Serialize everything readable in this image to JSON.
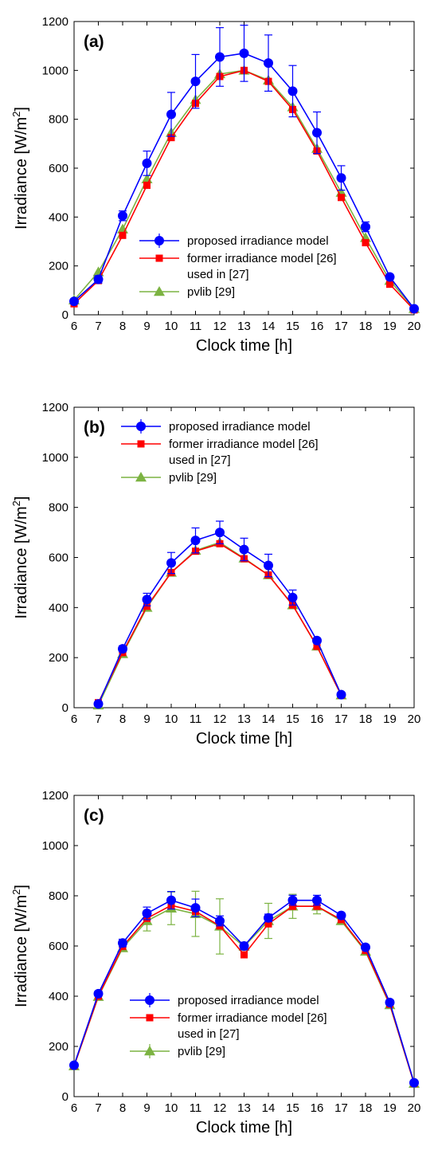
{
  "chart_data": [
    {
      "type": "line",
      "panel_label": "(a)",
      "xlabel": "Clock time [h]",
      "ylabel_main": "Irradiance [W/m",
      "ylabel_sup": "2",
      "ylabel_tail": "]",
      "xlim": [
        6,
        20
      ],
      "ylim": [
        0,
        1200
      ],
      "xticks": [
        6,
        7,
        8,
        9,
        10,
        11,
        12,
        13,
        14,
        15,
        16,
        17,
        18,
        19,
        20
      ],
      "yticks": [
        0,
        200,
        400,
        600,
        800,
        1000,
        1200
      ],
      "grid": false,
      "legend_placement": "bottom-center",
      "legend": [
        "proposed irradiance model",
        "former irradiance model [26]",
        "used in [27]",
        "pvlib [29]"
      ],
      "series": [
        {
          "name": "proposed irradiance model",
          "color": "#0000ff",
          "marker": "circle",
          "x": [
            6,
            7,
            8,
            9,
            10,
            11,
            12,
            13,
            14,
            15,
            16,
            17,
            18,
            19,
            20
          ],
          "y": [
            55,
            145,
            405,
            620,
            820,
            955,
            1055,
            1070,
            1030,
            915,
            745,
            560,
            360,
            155,
            25
          ],
          "err": [
            10,
            15,
            20,
            50,
            90,
            110,
            120,
            115,
            115,
            105,
            85,
            50,
            20,
            10,
            5
          ]
        },
        {
          "name": "former irradiance model [26] used in [27]",
          "color": "#ff0000",
          "marker": "square",
          "x": [
            6,
            7,
            8,
            9,
            10,
            11,
            12,
            13,
            14,
            15,
            16,
            17,
            18,
            19,
            20
          ],
          "y": [
            45,
            140,
            325,
            530,
            725,
            865,
            975,
            1000,
            955,
            840,
            670,
            480,
            295,
            125,
            20
          ]
        },
        {
          "name": "pvlib [29]",
          "color": "#7cb342",
          "marker": "triangle",
          "x": [
            6,
            7,
            8,
            9,
            10,
            11,
            12,
            13,
            14,
            15,
            16,
            17,
            18,
            19,
            20
          ],
          "y": [
            60,
            175,
            350,
            555,
            745,
            880,
            985,
            1000,
            960,
            850,
            680,
            500,
            315,
            140,
            25
          ]
        }
      ]
    },
    {
      "type": "line",
      "panel_label": "(b)",
      "xlabel": "Clock time [h]",
      "ylabel_main": "Irradiance [W/m",
      "ylabel_sup": "2",
      "ylabel_tail": "]",
      "xlim": [
        6,
        20
      ],
      "ylim": [
        0,
        1200
      ],
      "xticks": [
        6,
        7,
        8,
        9,
        10,
        11,
        12,
        13,
        14,
        15,
        16,
        17,
        18,
        19,
        20
      ],
      "yticks": [
        0,
        200,
        400,
        600,
        800,
        1000,
        1200
      ],
      "grid": false,
      "legend_placement": "top-center",
      "legend": [
        "proposed irradiance model",
        "former irradiance model [26]",
        "used in [27]",
        "pvlib [29]"
      ],
      "series": [
        {
          "name": "proposed irradiance model",
          "color": "#0000ff",
          "marker": "circle",
          "x": [
            7,
            8,
            9,
            10,
            11,
            12,
            13,
            14,
            15,
            16,
            17
          ],
          "y": [
            15,
            235,
            432,
            578,
            668,
            700,
            632,
            568,
            440,
            268,
            52
          ],
          "err": [
            5,
            12,
            25,
            42,
            50,
            45,
            45,
            45,
            30,
            10,
            5
          ]
        },
        {
          "name": "former irradiance model [26] used in [27]",
          "color": "#ff0000",
          "marker": "square",
          "x": [
            7,
            8,
            9,
            10,
            11,
            12,
            13,
            14,
            15,
            16,
            17
          ],
          "y": [
            20,
            220,
            405,
            540,
            625,
            655,
            595,
            530,
            410,
            245,
            50
          ]
        },
        {
          "name": "pvlib [29]",
          "color": "#7cb342",
          "marker": "triangle",
          "x": [
            7,
            8,
            9,
            10,
            11,
            12,
            13,
            14,
            15,
            16,
            17
          ],
          "y": [
            10,
            215,
            400,
            540,
            628,
            660,
            597,
            530,
            410,
            245,
            50
          ]
        }
      ]
    },
    {
      "type": "line",
      "panel_label": "(c)",
      "xlabel": "Clock time [h]",
      "ylabel_main": "Irradiance [W/m",
      "ylabel_sup": "2",
      "ylabel_tail": "]",
      "xlim": [
        6,
        20
      ],
      "ylim": [
        0,
        1200
      ],
      "xticks": [
        6,
        7,
        8,
        9,
        10,
        11,
        12,
        13,
        14,
        15,
        16,
        17,
        18,
        19,
        20
      ],
      "yticks": [
        0,
        200,
        400,
        600,
        800,
        1000,
        1200
      ],
      "grid": false,
      "legend_placement": "bottom-center",
      "legend": [
        "proposed irradiance model",
        "former irradiance model [26]",
        "used in [27]",
        "pvlib [29]"
      ],
      "series": [
        {
          "name": "proposed irradiance model",
          "color": "#0000ff",
          "marker": "circle",
          "x": [
            6,
            7,
            8,
            9,
            10,
            11,
            12,
            13,
            14,
            15,
            16,
            17,
            18,
            19,
            20
          ],
          "y": [
            125,
            410,
            612,
            730,
            782,
            752,
            700,
            600,
            712,
            782,
            782,
            722,
            595,
            375,
            55
          ],
          "err": [
            5,
            10,
            15,
            25,
            35,
            35,
            20,
            15,
            15,
            20,
            20,
            10,
            10,
            10,
            5
          ]
        },
        {
          "name": "former irradiance model [26] used in [27]",
          "color": "#ff0000",
          "marker": "square",
          "x": [
            6,
            7,
            8,
            9,
            10,
            11,
            12,
            13,
            14,
            15,
            16,
            17,
            18,
            19,
            20
          ],
          "y": [
            122,
            400,
            598,
            710,
            762,
            738,
            680,
            565,
            688,
            758,
            758,
            705,
            582,
            368,
            52
          ]
        },
        {
          "name": "pvlib [29]",
          "color": "#7cb342",
          "marker": "triangle",
          "x": [
            6,
            7,
            8,
            9,
            10,
            11,
            12,
            13,
            14,
            15,
            16,
            17,
            18,
            19,
            20
          ],
          "y": [
            122,
            398,
            592,
            700,
            750,
            728,
            678,
            598,
            700,
            758,
            758,
            700,
            578,
            365,
            52
          ],
          "err": [
            3,
            8,
            10,
            40,
            65,
            90,
            110,
            12,
            70,
            48,
            30,
            10,
            8,
            6,
            3
          ]
        }
      ]
    }
  ]
}
